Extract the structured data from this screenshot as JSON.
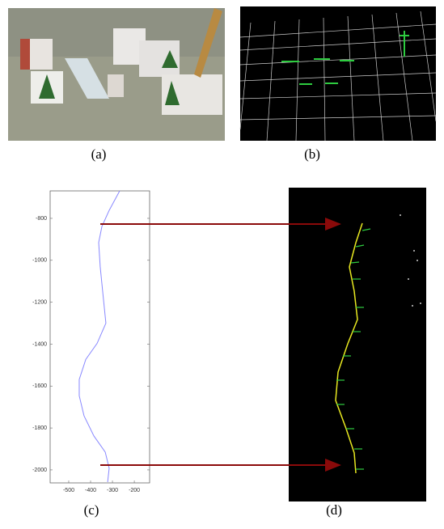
{
  "captions": [
    "(a)",
    "(b)",
    "(c)",
    "(d)"
  ],
  "chart_data": {
    "type": "line",
    "color": "#8888ff",
    "x": [
      -267,
      -315,
      -348,
      -363,
      -356,
      -345,
      -330,
      -370,
      -422,
      -452,
      -452,
      -430,
      -385,
      -333,
      -315,
      -322
    ],
    "y": [
      -669,
      -762,
      -838,
      -915,
      -1031,
      -1146,
      -1300,
      -1396,
      -1473,
      -1569,
      -1646,
      -1742,
      -1838,
      -1915,
      -1992,
      -2058
    ],
    "xlim": [
      -585,
      -130
    ],
    "ylim": [
      -2062,
      -669
    ],
    "xticks": [
      -500,
      -400,
      -300,
      -200
    ],
    "yticks": [
      -800,
      -1000,
      -1200,
      -1400,
      -1600,
      -1800,
      -2000
    ]
  }
}
